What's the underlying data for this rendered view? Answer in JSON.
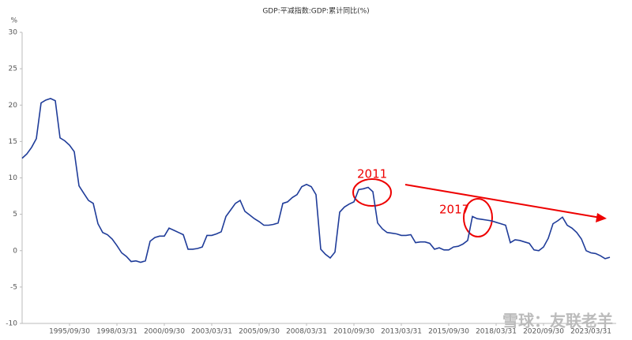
{
  "chart_data": {
    "type": "line",
    "title": "GDP:平减指数:GDP:累计同比(%)",
    "y_label": "%",
    "categories": [
      null,
      null,
      null,
      null,
      null,
      null,
      null,
      null,
      null,
      null,
      "1995/09/30",
      null,
      null,
      null,
      null,
      null,
      null,
      null,
      null,
      null,
      "1998/03/31",
      null,
      null,
      null,
      null,
      null,
      null,
      null,
      null,
      null,
      "2000/09/30",
      null,
      null,
      null,
      null,
      null,
      null,
      null,
      null,
      null,
      "2003/03/31",
      null,
      null,
      null,
      null,
      null,
      null,
      null,
      null,
      null,
      "2005/09/30",
      null,
      null,
      null,
      null,
      null,
      null,
      null,
      null,
      null,
      "2008/03/31",
      null,
      null,
      null,
      null,
      null,
      null,
      null,
      null,
      null,
      "2010/09/30",
      null,
      null,
      null,
      null,
      null,
      null,
      null,
      null,
      null,
      "2013/03/31",
      null,
      null,
      null,
      null,
      null,
      null,
      null,
      null,
      null,
      "2015/09/30",
      null,
      null,
      null,
      null,
      null,
      null,
      null,
      null,
      null,
      "2018/03/31",
      null,
      null,
      null,
      null,
      null,
      null,
      null,
      null,
      null,
      "2020/09/30",
      null,
      null,
      null,
      null,
      null,
      null,
      null,
      null,
      null,
      "2023/03/31",
      null,
      null,
      null,
      null
    ],
    "series": [
      {
        "name": "GDP:平减指数:GDP:累计同比",
        "color": "#1f3c99",
        "values": [
          12.7,
          13.3,
          14.2,
          15.4,
          20.3,
          20.7,
          20.9,
          20.6,
          15.5,
          15.1,
          14.5,
          13.6,
          8.9,
          7.9,
          6.9,
          6.5,
          3.7,
          2.5,
          2.2,
          1.6,
          0.7,
          -0.3,
          -0.8,
          -1.5,
          -1.4,
          -1.6,
          -1.4,
          1.3,
          1.8,
          2.0,
          2.0,
          3.1,
          2.8,
          2.5,
          2.2,
          0.2,
          0.2,
          0.3,
          0.5,
          2.1,
          2.1,
          2.3,
          2.6,
          4.7,
          5.6,
          6.5,
          6.9,
          5.4,
          4.9,
          4.4,
          4.0,
          3.5,
          3.5,
          3.6,
          3.8,
          6.5,
          6.7,
          7.3,
          7.7,
          8.8,
          9.1,
          8.8,
          7.7,
          0.2,
          -0.5,
          -1.0,
          -0.2,
          5.3,
          6.0,
          6.4,
          6.7,
          8.4,
          8.5,
          8.7,
          8.1,
          3.8,
          3.0,
          2.5,
          2.4,
          2.3,
          2.1,
          2.1,
          2.2,
          1.1,
          1.2,
          1.2,
          1.0,
          0.2,
          0.4,
          0.1,
          0.1,
          0.5,
          0.6,
          0.9,
          1.4,
          4.7,
          4.4,
          4.3,
          4.2,
          4.1,
          3.9,
          3.7,
          3.5,
          1.1,
          1.5,
          1.4,
          1.2,
          1.0,
          0.1,
          0.0,
          0.5,
          1.7,
          3.7,
          4.1,
          4.6,
          3.5,
          3.1,
          2.5,
          1.6,
          0.0,
          -0.3,
          -0.4,
          -0.7,
          -1.1,
          -0.9
        ]
      }
    ],
    "ylim": [
      -10,
      30
    ],
    "yticks": [
      -10,
      -5,
      0,
      5,
      10,
      15,
      20,
      25,
      30
    ],
    "annotations": [
      "2011",
      "2017"
    ],
    "watermark": "雪球：友联老羊"
  }
}
